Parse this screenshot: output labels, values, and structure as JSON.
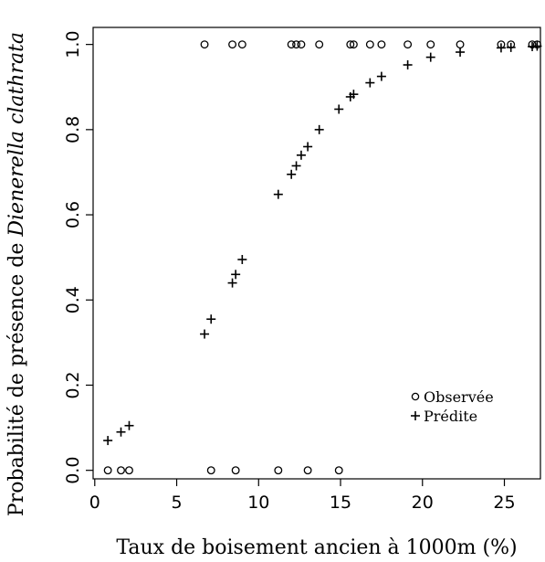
{
  "chart_data": {
    "type": "scatter",
    "xlabel": "Taux de boisement ancien à 1000m (%)",
    "ylabel_prefix": "Probabilité de présence de ",
    "ylabel_species": "Dienerella clathrata",
    "xlim": [
      -0.1,
      27.2
    ],
    "ylim": [
      -0.02,
      1.04
    ],
    "x_ticks": [
      0,
      5,
      10,
      15,
      20,
      25
    ],
    "y_ticks": [
      0.0,
      0.2,
      0.4,
      0.6,
      0.8,
      1.0
    ],
    "x_tick_labels": [
      "0",
      "5",
      "10",
      "15",
      "20",
      "25"
    ],
    "y_tick_labels": [
      "0.0",
      "0.2",
      "0.4",
      "0.6",
      "0.8",
      "1.0"
    ],
    "legend": {
      "position": "bottom-right",
      "entries": [
        {
          "label": "Observée",
          "marker": "circle"
        },
        {
          "label": "Prédite",
          "marker": "plus"
        }
      ]
    },
    "series": [
      {
        "name": "Observée",
        "marker": "circle",
        "x": [
          0.8,
          1.6,
          2.1,
          7.1,
          8.6,
          11.2,
          13.0,
          14.9,
          6.7,
          8.4,
          9.0,
          12.0,
          12.3,
          12.6,
          13.7,
          15.6,
          15.8,
          16.8,
          17.5,
          19.1,
          20.5,
          22.3,
          24.8,
          25.4,
          26.7,
          27.0
        ],
        "y": [
          0,
          0,
          0,
          0,
          0,
          0,
          0,
          0,
          1,
          1,
          1,
          1,
          1,
          1,
          1,
          1,
          1,
          1,
          1,
          1,
          1,
          1,
          1,
          1,
          1,
          1
        ]
      },
      {
        "name": "Prédite",
        "marker": "plus",
        "x": [
          0.8,
          1.6,
          2.1,
          6.7,
          7.1,
          8.4,
          8.6,
          9.0,
          11.2,
          12.0,
          12.3,
          12.6,
          13.0,
          13.7,
          14.9,
          15.6,
          15.8,
          16.8,
          17.5,
          19.1,
          20.5,
          22.3,
          24.8,
          25.4,
          26.7,
          27.0
        ],
        "y": [
          0.07,
          0.09,
          0.105,
          0.32,
          0.355,
          0.44,
          0.46,
          0.495,
          0.648,
          0.695,
          0.715,
          0.74,
          0.76,
          0.8,
          0.848,
          0.877,
          0.883,
          0.91,
          0.925,
          0.952,
          0.97,
          0.982,
          0.992,
          0.993,
          0.995,
          0.996
        ]
      }
    ]
  }
}
